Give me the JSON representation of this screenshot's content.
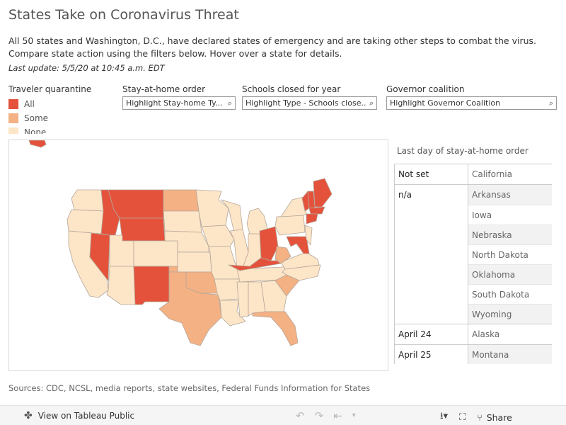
{
  "header": {
    "title": "States Take on Coronavirus Threat",
    "description": "All 50 states and Washington, D.C., have declared states of emergency and are taking other steps to combat the virus. Compare state action using the filters below. Hover over a state for details.",
    "last_update": "Last update: 5/5/20 at 10:45 a.m. EDT"
  },
  "legend": {
    "title": "Traveler quarantine",
    "items": [
      {
        "label": "All",
        "color": "#e4523b"
      },
      {
        "label": "Some",
        "color": "#f4b183"
      },
      {
        "label": "None",
        "color": "#fde5c7"
      }
    ]
  },
  "filters": {
    "stay_home": {
      "label": "Stay-at-home order",
      "value": "Highlight Stay-home Ty..."
    },
    "schools": {
      "label": "Schools closed for year",
      "value": "Highlight Type - Schools close..."
    },
    "governor": {
      "label": "Governor coalition",
      "value": "Highlight Governor Coalition"
    }
  },
  "table": {
    "title": "Last day of stay-at-home order",
    "groups": [
      {
        "label": "Not set",
        "states": [
          "California"
        ]
      },
      {
        "label": "n/a",
        "states": [
          "Arkansas",
          "Iowa",
          "Nebraska",
          "North Dakota",
          "Oklahoma",
          "South Dakota",
          "Wyoming"
        ]
      },
      {
        "label": "April 24",
        "states": [
          "Alaska"
        ]
      },
      {
        "label": "April 25",
        "states": [
          "Montana"
        ]
      }
    ]
  },
  "sources": "Sources: CDC, NCSL, media reports, state websites, Federal Funds Information for States",
  "toolbar": {
    "view_label": "View on Tableau Public",
    "share_label": "Share"
  },
  "icons": {
    "tableau": "tableau-logo-icon",
    "undo": "undo-icon",
    "redo": "redo-icon",
    "revert": "revert-icon",
    "download": "download-icon",
    "fullscreen": "fullscreen-icon",
    "share": "share-icon"
  },
  "colors": {
    "all": "#e4523b",
    "some": "#f4b183",
    "none": "#fde5c7",
    "state_border": "#b4a79a"
  }
}
